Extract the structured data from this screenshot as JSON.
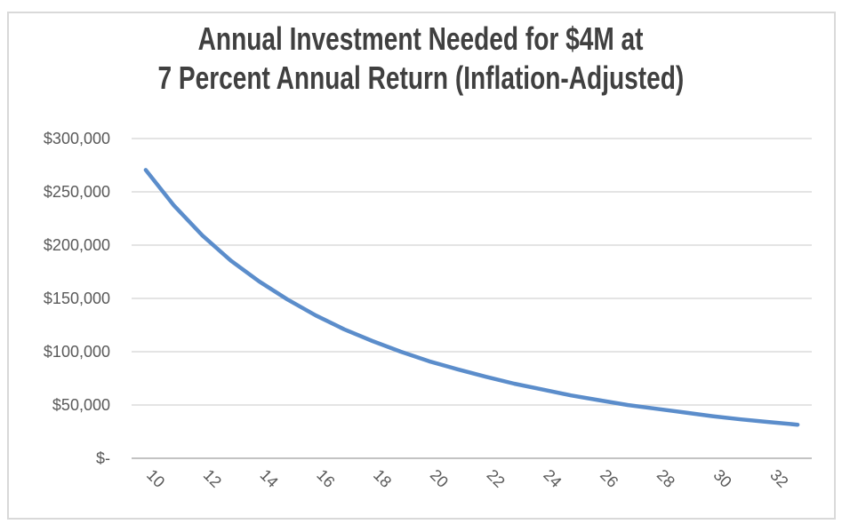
{
  "chart_data": {
    "type": "line",
    "title": "Annual Investment Needed for $4M at 7 Percent Annual Return (Inflation-Adjusted)",
    "title_line1": "Annual Investment Needed for $4M at",
    "title_line2": "7 Percent Annual Return (Inflation-Adjusted)",
    "xlabel": "",
    "ylabel": "",
    "x": [
      10,
      11,
      12,
      13,
      14,
      15,
      16,
      17,
      18,
      19,
      20,
      21,
      22,
      23,
      24,
      25,
      26,
      27,
      28,
      29,
      30,
      31,
      32,
      33
    ],
    "values": [
      270500,
      237000,
      209000,
      185500,
      166000,
      149000,
      134000,
      121000,
      110000,
      100000,
      91000,
      83500,
      76500,
      70000,
      64500,
      59000,
      54500,
      50000,
      46500,
      43000,
      39500,
      36500,
      34000,
      31500
    ],
    "x_tick_labels": [
      "10",
      "12",
      "14",
      "16",
      "18",
      "20",
      "22",
      "24",
      "26",
      "28",
      "30",
      "32"
    ],
    "y_tick_labels": [
      "$-",
      "$50,000",
      "$100,000",
      "$150,000",
      "$200,000",
      "$250,000",
      "$300,000"
    ],
    "ylim": [
      0,
      300000
    ],
    "y_tick_step": 50000,
    "grid": true,
    "legend": false,
    "colors": {
      "line": "#5b8dcb",
      "gridline": "#dcdcdc",
      "axis_line": "#c3c3c3",
      "title_text": "#404040",
      "tick_text": "#595959",
      "frame_border": "#d9d9d9",
      "background": "#ffffff"
    }
  }
}
